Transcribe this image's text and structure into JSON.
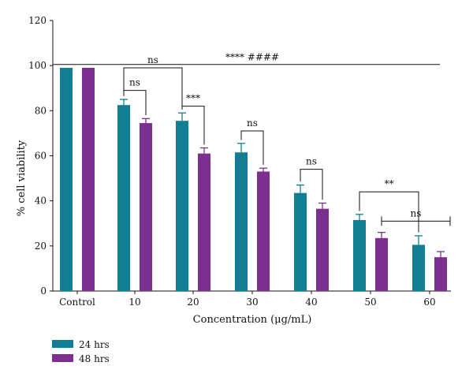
{
  "chart_data": {
    "type": "bar",
    "xlabel": "Concentration (μg/mL)",
    "ylabel": "% cell viability",
    "ylim": [
      0,
      120
    ],
    "yticks": [
      0,
      20,
      40,
      60,
      80,
      100,
      120
    ],
    "grid": false,
    "legend_position": "bottom-left",
    "categories": [
      "Control",
      "10",
      "20",
      "30",
      "40",
      "50",
      "60"
    ],
    "series": [
      {
        "name": "24 hrs",
        "color": "#117f93",
        "values": [
          99,
          82.5,
          75.5,
          61.5,
          43.5,
          31.5,
          20.5
        ],
        "errors": [
          0,
          2.5,
          3.5,
          4,
          3.5,
          2.5,
          4
        ]
      },
      {
        "name": "48 hrs",
        "color": "#7b2f8e",
        "values": [
          99,
          74.5,
          61,
          53,
          36.5,
          23.5,
          15
        ],
        "errors": [
          0,
          2,
          2.5,
          1.5,
          2.5,
          2.5,
          2.5
        ]
      }
    ],
    "annotations": {
      "overall": {
        "text": "****    ####",
        "y": 106
      },
      "brackets": [
        {
          "text": "ns",
          "cat": 1,
          "from_series": 0,
          "to_series": 1,
          "y": 89
        },
        {
          "text": "ns",
          "cat_from": 1,
          "cat_to": 2,
          "from_series": 0,
          "to_series": 0,
          "y": 99
        },
        {
          "text": "***",
          "cat": 2,
          "from_series": 0,
          "to_series": 1,
          "y": 82
        },
        {
          "text": "ns",
          "cat": 3,
          "from_series": 0,
          "to_series": 1,
          "y": 71
        },
        {
          "text": "ns",
          "cat": 4,
          "from_series": 0,
          "to_series": 1,
          "y": 54
        },
        {
          "text": "**",
          "cat_from": 5,
          "cat_to": 6,
          "from_series": 0,
          "to_series": 0,
          "y": 44
        },
        {
          "text": "ns",
          "cat_from": 5,
          "cat_to": 6,
          "from_series": 1,
          "to_series": 1,
          "y": 31,
          "style": "capped"
        }
      ]
    }
  }
}
